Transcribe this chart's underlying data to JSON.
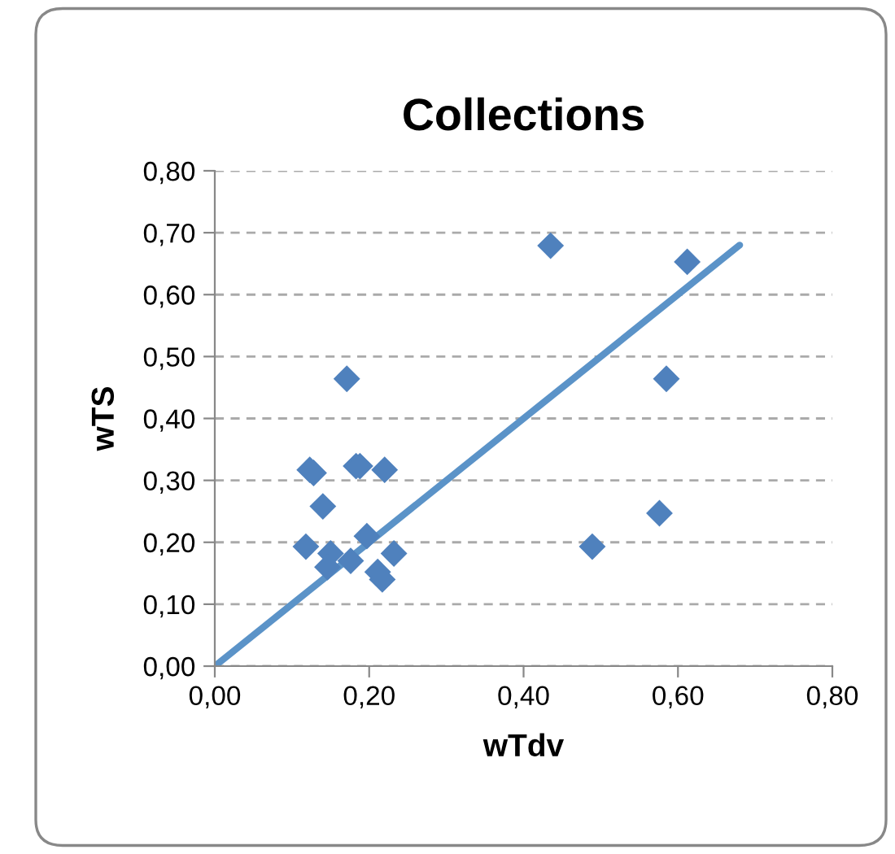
{
  "chart_data": {
    "type": "scatter",
    "title": "Collections",
    "xlabel": "wTdv",
    "ylabel": "wTS",
    "xlim": [
      0,
      0.8
    ],
    "ylim": [
      0,
      0.8
    ],
    "xticks": [
      {
        "value": 0,
        "label": "0,00"
      },
      {
        "value": 0.2,
        "label": "0,20"
      },
      {
        "value": 0.4,
        "label": "0,40"
      },
      {
        "value": 0.6,
        "label": "0,60"
      },
      {
        "value": 0.8,
        "label": "0,80"
      }
    ],
    "yticks": [
      {
        "value": 0,
        "label": "0,00"
      },
      {
        "value": 0.1,
        "label": "0,10"
      },
      {
        "value": 0.2,
        "label": "0,20"
      },
      {
        "value": 0.3,
        "label": "0,30"
      },
      {
        "value": 0.4,
        "label": "0,40"
      },
      {
        "value": 0.5,
        "label": "0,50"
      },
      {
        "value": 0.6,
        "label": "0,60"
      },
      {
        "value": 0.7,
        "label": "0,70"
      },
      {
        "value": 0.8,
        "label": "0,80"
      }
    ],
    "grid": "y",
    "legend": false,
    "series": [
      {
        "marker": "diamond",
        "color": "#4f81bd",
        "x": [
          0.435,
          0.612,
          0.585,
          0.171,
          0.123,
          0.128,
          0.183,
          0.188,
          0.22,
          0.14,
          0.576,
          0.118,
          0.489,
          0.197,
          0.15,
          0.232,
          0.176,
          0.146,
          0.211,
          0.217
        ],
        "values": [
          0.679,
          0.653,
          0.464,
          0.464,
          0.317,
          0.312,
          0.323,
          0.323,
          0.317,
          0.258,
          0.247,
          0.193,
          0.193,
          0.21,
          0.182,
          0.182,
          0.17,
          0.16,
          0.152,
          0.14
        ]
      },
      {
        "type": "line",
        "marker": "none",
        "color": "#5b93c8",
        "x": [
          0,
          0.68
        ],
        "values": [
          0,
          0.68
        ]
      }
    ]
  }
}
